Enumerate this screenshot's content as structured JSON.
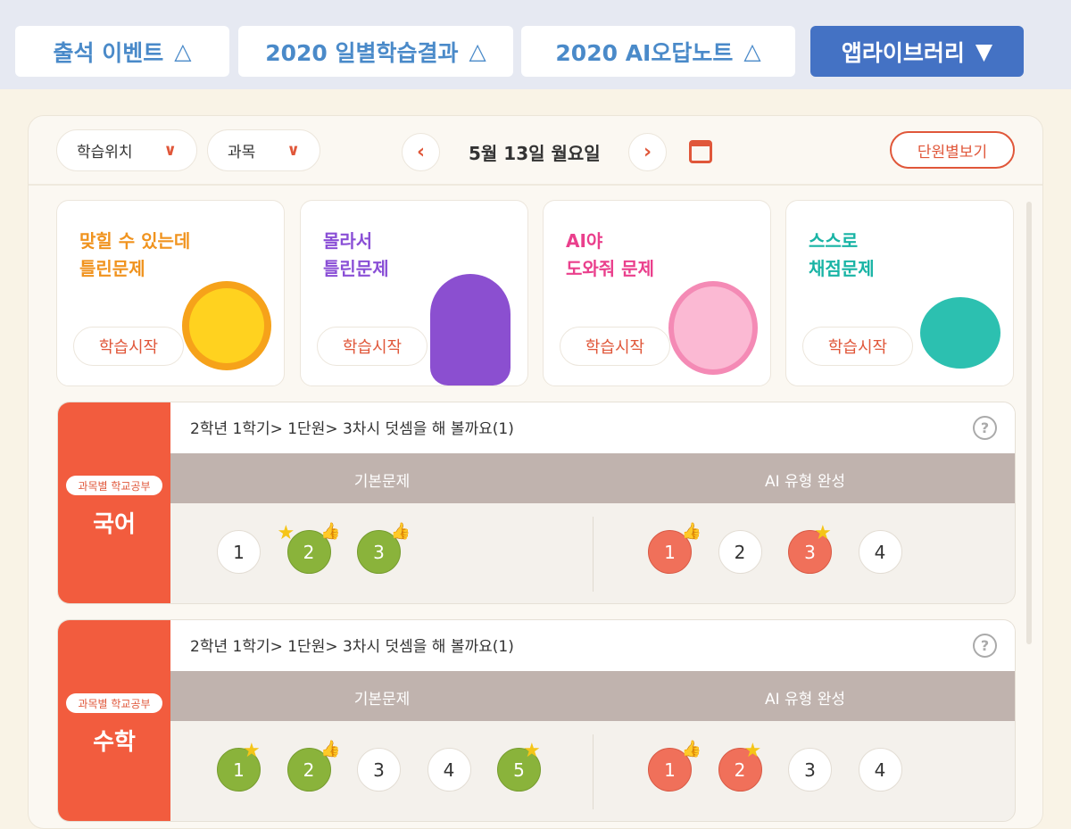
{
  "top_tabs": [
    {
      "label": "출석 이벤트",
      "icon": "△"
    },
    {
      "label": "2020 일별학습결과",
      "icon": "△"
    },
    {
      "label": "2020 AI오답노트",
      "icon": "△"
    },
    {
      "label": "앱라이브러리",
      "icon": "▼"
    }
  ],
  "toolbar": {
    "location_select": "학습위치",
    "subject_select": "과목",
    "date": "5월 13일 월요일",
    "prev": "‹",
    "next": "›",
    "unit_view": "단원별보기",
    "chevron": "∨"
  },
  "cards": [
    {
      "line1": "맞힐 수 있는데",
      "line2": "틀린문제",
      "color": "#f0931e",
      "start": "학습시작"
    },
    {
      "line1": "몰라서",
      "line2": "틀린문제",
      "color": "#8a4fd6",
      "start": "학습시작"
    },
    {
      "line1": "AI야",
      "line2": "도와줘 문제",
      "color": "#ea3f8c",
      "start": "학습시작"
    },
    {
      "line1": "스스로",
      "line2": "채점문제",
      "color": "#19b4a5",
      "start": "학습시작"
    }
  ],
  "subjects": [
    {
      "tag": "과목별 학교공부",
      "name": "국어",
      "path": "2학년 1학기> 1단원> 3차시 덧셈을 해 볼까요(1)",
      "help": "?",
      "basic_label": "기본문제",
      "ai_label": "AI 유형 완성",
      "basic": [
        {
          "n": "1",
          "state": "none"
        },
        {
          "n": "2",
          "state": "correct",
          "star": true,
          "thumb": true
        },
        {
          "n": "3",
          "state": "correct",
          "thumb": true
        }
      ],
      "ai": [
        {
          "n": "1",
          "state": "wrong",
          "thumb": true
        },
        {
          "n": "2",
          "state": "none"
        },
        {
          "n": "3",
          "state": "wrong",
          "star": true
        },
        {
          "n": "4",
          "state": "none"
        }
      ]
    },
    {
      "tag": "과목별 학교공부",
      "name": "수학",
      "path": "2학년 1학기> 1단원> 3차시 덧셈을 해 볼까요(1)",
      "help": "?",
      "basic_label": "기본문제",
      "ai_label": "AI 유형 완성",
      "basic": [
        {
          "n": "1",
          "state": "correct",
          "star": true
        },
        {
          "n": "2",
          "state": "correct",
          "thumb": true
        },
        {
          "n": "3",
          "state": "none"
        },
        {
          "n": "4",
          "state": "none"
        },
        {
          "n": "5",
          "state": "correct",
          "star": true
        }
      ],
      "ai": [
        {
          "n": "1",
          "state": "wrong",
          "thumb": true
        },
        {
          "n": "2",
          "state": "wrong",
          "star": true
        },
        {
          "n": "3",
          "state": "none"
        },
        {
          "n": "4",
          "state": "none"
        }
      ]
    }
  ],
  "colors": {
    "accent": "#f25c3e",
    "blue": "#4472c4",
    "correct": "#8ab33b",
    "wrong": "#f0705a"
  }
}
